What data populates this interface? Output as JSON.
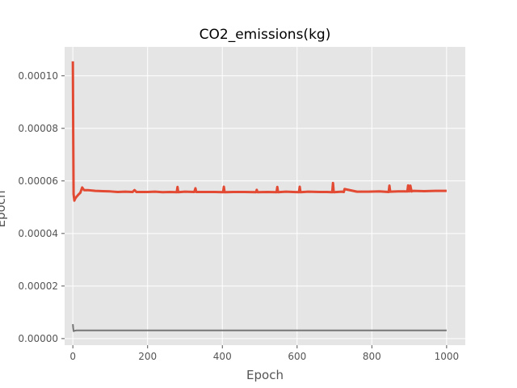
{
  "chart_data": {
    "type": "line",
    "title": "CO2_emissions(kg)",
    "xlabel": "Epoch",
    "ylabel": "Epoch",
    "xlim": [
      -22,
      1050
    ],
    "ylim": [
      -2.5e-06,
      0.000111
    ],
    "xticks": [
      0,
      200,
      400,
      600,
      800,
      1000
    ],
    "xtick_labels": [
      "0",
      "200",
      "400",
      "600",
      "800",
      "1000"
    ],
    "yticks": [
      0,
      2e-05,
      4e-05,
      6e-05,
      8e-05,
      0.0001
    ],
    "ytick_labels": [
      "0.00000",
      "0.00002",
      "0.00004",
      "0.00006",
      "0.00008",
      "0.00010"
    ],
    "grid": true,
    "legend": "none",
    "series": [
      {
        "color": "#e24a33",
        "x": [
          0,
          1,
          2,
          4,
          6,
          10,
          15,
          20,
          25,
          30,
          40,
          60,
          80,
          100,
          120,
          140,
          160,
          165,
          170,
          200,
          220,
          240,
          260,
          278,
          280,
          282,
          300,
          325,
          328,
          330,
          350,
          380,
          402,
          404,
          406,
          430,
          460,
          490,
          492,
          494,
          520,
          545,
          547,
          549,
          570,
          590,
          605,
          607,
          609,
          630,
          660,
          680,
          694,
          696,
          698,
          720,
          725,
          727,
          760,
          790,
          820,
          845,
          847,
          849,
          870,
          895,
          897,
          900,
          903,
          906,
          910,
          940,
          970,
          1000
        ],
        "y": [
          0.0001055,
          7.8e-05,
          5.5e-05,
          5.25e-05,
          5.32e-05,
          5.4e-05,
          5.48e-05,
          5.55e-05,
          5.75e-05,
          5.65e-05,
          5.65e-05,
          5.62e-05,
          5.61e-05,
          5.6e-05,
          5.58e-05,
          5.59e-05,
          5.58e-05,
          5.65e-05,
          5.58e-05,
          5.58e-05,
          5.59e-05,
          5.57e-05,
          5.58e-05,
          5.57e-05,
          5.77e-05,
          5.57e-05,
          5.59e-05,
          5.58e-05,
          5.72e-05,
          5.58e-05,
          5.58e-05,
          5.58e-05,
          5.57e-05,
          5.78e-05,
          5.57e-05,
          5.58e-05,
          5.58e-05,
          5.57e-05,
          5.66e-05,
          5.57e-05,
          5.58e-05,
          5.57e-05,
          5.77e-05,
          5.57e-05,
          5.59e-05,
          5.58e-05,
          5.57e-05,
          5.78e-05,
          5.57e-05,
          5.59e-05,
          5.58e-05,
          5.58e-05,
          5.57e-05,
          5.92e-05,
          5.57e-05,
          5.59e-05,
          5.58e-05,
          5.69e-05,
          5.59e-05,
          5.59e-05,
          5.6e-05,
          5.58e-05,
          5.82e-05,
          5.59e-05,
          5.6e-05,
          5.6e-05,
          5.83e-05,
          5.6e-05,
          5.82e-05,
          5.6e-05,
          5.62e-05,
          5.61e-05,
          5.62e-05,
          5.62e-05
        ]
      },
      {
        "color": "#777777",
        "x": [
          0,
          1,
          2,
          5,
          10,
          50,
          100,
          200,
          300,
          400,
          500,
          600,
          700,
          800,
          900,
          1000
        ],
        "y": [
          5.5e-06,
          4e-06,
          2.8e-06,
          3e-06,
          3.1e-06,
          3.1e-06,
          3.1e-06,
          3.1e-06,
          3.1e-06,
          3.1e-06,
          3.1e-06,
          3.1e-06,
          3.1e-06,
          3.1e-06,
          3.1e-06,
          3.1e-06
        ]
      }
    ]
  }
}
